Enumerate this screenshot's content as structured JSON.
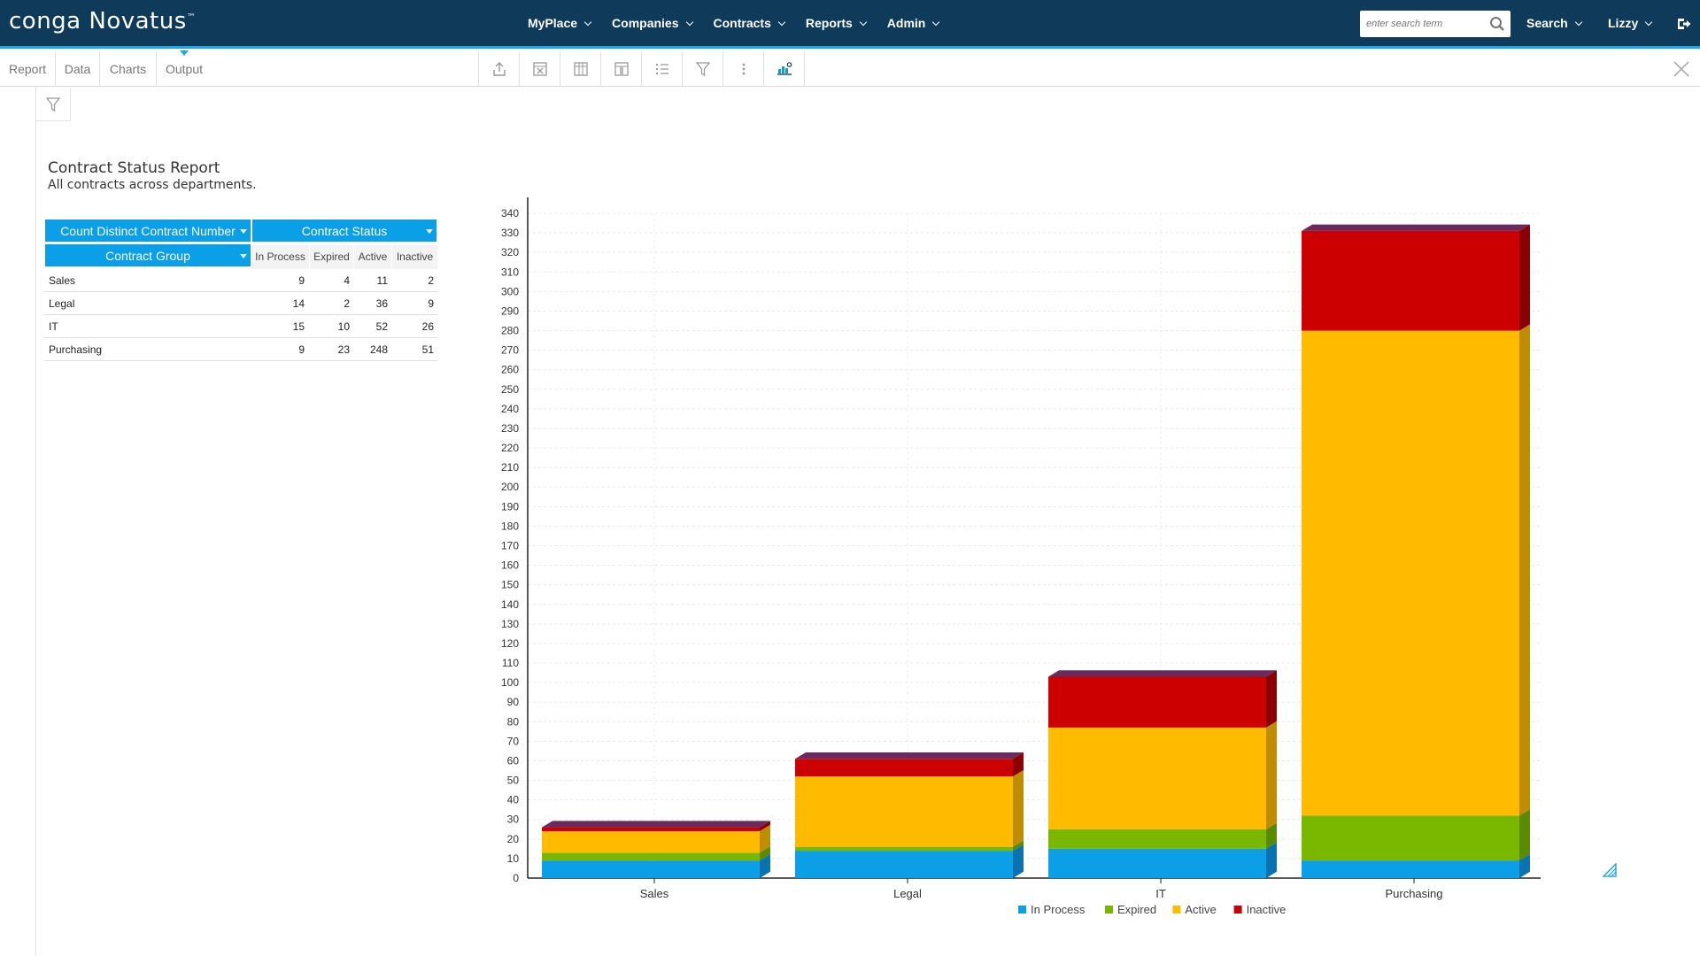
{
  "app": {
    "logo_text": "conga Novatus",
    "nav": [
      {
        "label": "MyPlace"
      },
      {
        "label": "Companies"
      },
      {
        "label": "Contracts"
      },
      {
        "label": "Reports"
      },
      {
        "label": "Admin"
      }
    ],
    "search_placeholder": "enter search term",
    "search_menu_label": "Search",
    "user_label": "Lizzy"
  },
  "toolbar": {
    "tabs": [
      "Report",
      "Data",
      "Charts",
      "Output"
    ],
    "active_tab": "Output",
    "tools": [
      "export-icon",
      "excel-icon",
      "columns-icon",
      "pivot-icon",
      "list-icon",
      "filter-icon",
      "more-icon",
      "chart-settings-icon"
    ]
  },
  "report": {
    "title": "Contract Status Report",
    "subtitle": "All contracts across departments."
  },
  "pivot": {
    "measure_label": "Count Distinct Contract Number",
    "column_field_label": "Contract Status",
    "row_field_label": "Contract Group",
    "columns": [
      "In Process",
      "Expired",
      "Active",
      "Inactive"
    ],
    "rows": [
      {
        "group": "Sales",
        "values": [
          "9",
          "4",
          "11",
          "2"
        ]
      },
      {
        "group": "Legal",
        "values": [
          "14",
          "2",
          "36",
          "9"
        ]
      },
      {
        "group": "IT",
        "values": [
          "15",
          "10",
          "52",
          "26"
        ]
      },
      {
        "group": "Purchasing",
        "values": [
          "9",
          "23",
          "248",
          "51"
        ]
      }
    ]
  },
  "colors": {
    "nav_bg": "#0f3a5a",
    "accent": "#0a9fe6",
    "in_process": "#0a9fe6",
    "expired": "#7ab800",
    "active": "#ffbb00",
    "inactive": "#cc0000",
    "bar_top": "#6b2a5e"
  },
  "chart_data": {
    "type": "bar",
    "stacked": true,
    "three_d": true,
    "categories": [
      "Sales",
      "Legal",
      "IT",
      "Purchasing"
    ],
    "series": [
      {
        "name": "In Process",
        "values": [
          9,
          14,
          15,
          9
        ]
      },
      {
        "name": "Expired",
        "values": [
          4,
          2,
          10,
          23
        ]
      },
      {
        "name": "Active",
        "values": [
          11,
          36,
          52,
          248
        ]
      },
      {
        "name": "Inactive",
        "values": [
          2,
          9,
          26,
          51
        ]
      }
    ],
    "ylim": [
      0,
      340
    ],
    "ytick_step": 10,
    "grid": true,
    "legend_position": "bottom"
  }
}
